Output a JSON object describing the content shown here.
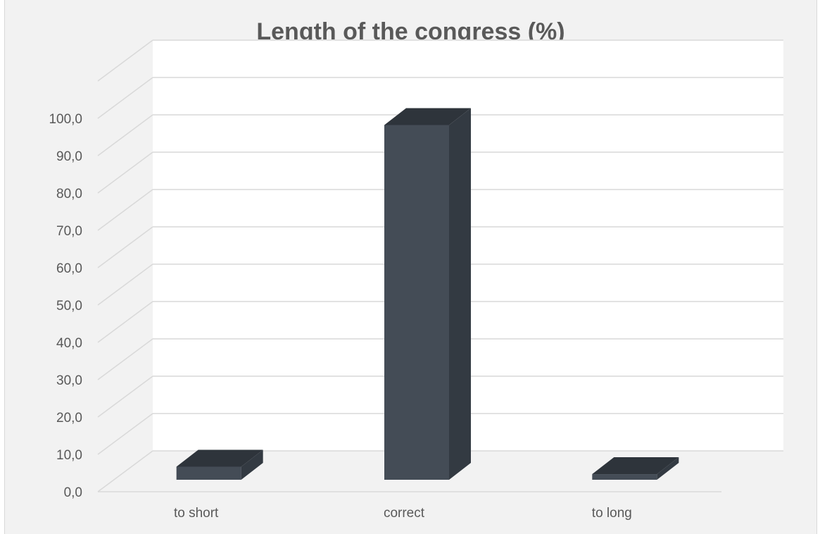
{
  "chart_data": {
    "type": "bar",
    "title": "Length of the congress (%)",
    "categories": [
      "to short",
      "correct",
      "to long"
    ],
    "values": [
      3.5,
      95.0,
      1.5
    ],
    "y_tick_labels": [
      "0,0",
      "10,0",
      "20,0",
      "30,0",
      "40,0",
      "50,0",
      "60,0",
      "70,0",
      "80,0",
      "90,0",
      "100,0"
    ],
    "ylim": [
      0,
      100
    ],
    "grid": true,
    "legend": "none",
    "style": "3d-column"
  },
  "colors": {
    "background": "#f2f2f2",
    "back_wall": "#ffffff",
    "gridline": "#d9d9d9",
    "bar_front": "#444c56",
    "bar_side": "#333a42",
    "bar_top": "#2e343b",
    "text": "#595959"
  }
}
